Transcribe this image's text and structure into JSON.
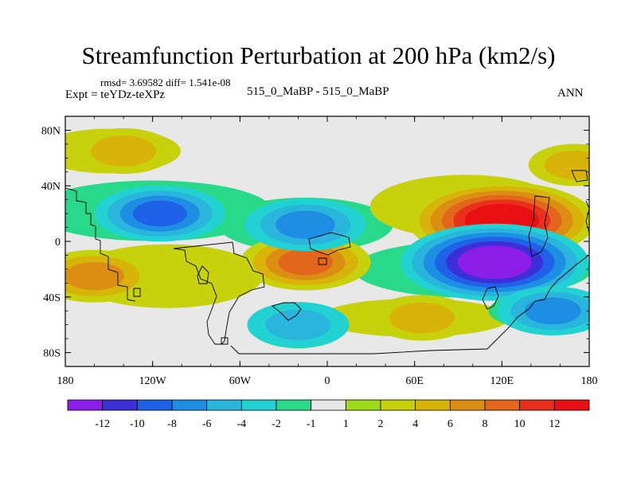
{
  "chart_data": {
    "type": "heatmap",
    "title": "Streamfunction Perturbation at 200 hPa (km2/s)",
    "subtitle": "rmsd= 3.69582 diff= 1.541e-08",
    "left_label": "Expt = teYDz-teXPz",
    "center_label": "515_0_MaBP - 515_0_MaBP",
    "right_label": "ANN",
    "xlabel": "",
    "ylabel": "",
    "xlim": [
      -180,
      180
    ],
    "ylim": [
      -90,
      90
    ],
    "x_ticks": [
      {
        "value": -180,
        "label": "180"
      },
      {
        "value": -120,
        "label": "120W"
      },
      {
        "value": -60,
        "label": "60W"
      },
      {
        "value": 0,
        "label": "0"
      },
      {
        "value": 60,
        "label": "60E"
      },
      {
        "value": 120,
        "label": "120E"
      },
      {
        "value": 180,
        "label": "180"
      }
    ],
    "y_ticks": [
      {
        "value": 80,
        "label": "80N"
      },
      {
        "value": 40,
        "label": "40N"
      },
      {
        "value": 0,
        "label": "0"
      },
      {
        "value": -40,
        "label": "40S"
      },
      {
        "value": -80,
        "label": "80S"
      }
    ],
    "colorbar": {
      "levels": [
        "-12",
        "-10",
        "-8",
        "-6",
        "-4",
        "-2",
        "-1",
        "1",
        "2",
        "4",
        "6",
        "8",
        "10",
        "12"
      ],
      "colors": [
        "#8a1ee8",
        "#3c2fd8",
        "#1f62e8",
        "#1d8ee3",
        "#2ab5dd",
        "#22d2d2",
        "#29d98a",
        "#e8e8e8",
        "#9fda1a",
        "#c7d10c",
        "#d8b40a",
        "#db8e12",
        "#e3661c",
        "#e8301c",
        "#e81012"
      ]
    },
    "field": {
      "unit": "km2/s",
      "positive_centers": [
        {
          "lon": 120,
          "lat": 15,
          "value": 12
        },
        {
          "lon": -15,
          "lat": -15,
          "value": 6
        },
        {
          "lon": -160,
          "lat": -25,
          "value": 5
        },
        {
          "lon": 65,
          "lat": -55,
          "value": 3
        },
        {
          "lon": -140,
          "lat": 65,
          "value": 3
        },
        {
          "lon": 170,
          "lat": 55,
          "value": 2
        }
      ],
      "negative_centers": [
        {
          "lon": 115,
          "lat": -15,
          "value": -12
        },
        {
          "lon": -115,
          "lat": 20,
          "value": -6
        },
        {
          "lon": -15,
          "lat": 12,
          "value": -5
        },
        {
          "lon": 155,
          "lat": -50,
          "value": -4
        },
        {
          "lon": -20,
          "lat": -60,
          "value": -3
        }
      ]
    }
  }
}
